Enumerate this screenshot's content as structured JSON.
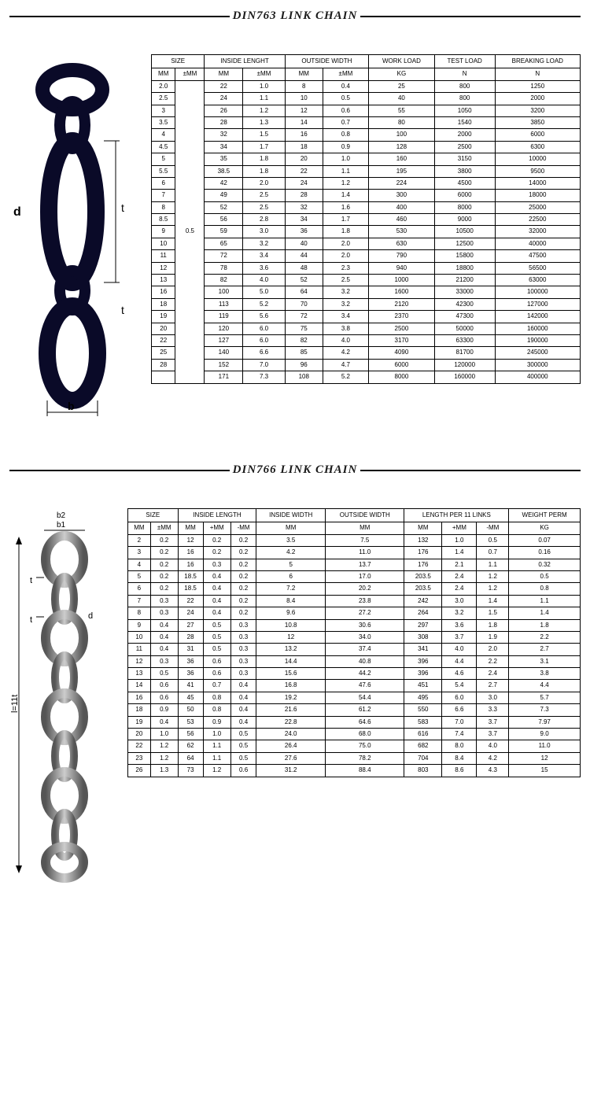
{
  "section1": {
    "title": "DIN763 LINK CHAIN",
    "diagram_labels": {
      "d": "d",
      "t": "t",
      "t2": "t",
      "b": "b"
    },
    "headers": {
      "size": "SIZE",
      "inside_length": "INSIDE LENGHT",
      "outside_width": "OUTSIDE WIDTH",
      "work_load": "WORK LOAD",
      "test_load": "TEST LOAD",
      "breaking_load": "BREAKING LOAD",
      "mm": "MM",
      "pmm": "±MM",
      "kg": "KG",
      "n": "N"
    },
    "tolerance": "0.5",
    "rows": [
      [
        "2.0",
        "22",
        "1.0",
        "8",
        "0.4",
        "25",
        "800",
        "1250"
      ],
      [
        "2.5",
        "24",
        "1.1",
        "10",
        "0.5",
        "40",
        "800",
        "2000"
      ],
      [
        "3",
        "26",
        "1.2",
        "12",
        "0.6",
        "55",
        "1050",
        "3200"
      ],
      [
        "3.5",
        "28",
        "1.3",
        "14",
        "0.7",
        "80",
        "1540",
        "3850"
      ],
      [
        "4",
        "32",
        "1.5",
        "16",
        "0.8",
        "100",
        "2000",
        "6000"
      ],
      [
        "4.5",
        "34",
        "1.7",
        "18",
        "0.9",
        "128",
        "2500",
        "6300"
      ],
      [
        "5",
        "35",
        "1.8",
        "20",
        "1.0",
        "160",
        "3150",
        "10000"
      ],
      [
        "5.5",
        "38.5",
        "1.8",
        "22",
        "1.1",
        "195",
        "3800",
        "9500"
      ],
      [
        "6",
        "42",
        "2.0",
        "24",
        "1.2",
        "224",
        "4500",
        "14000"
      ],
      [
        "7",
        "49",
        "2.5",
        "28",
        "1.4",
        "300",
        "6000",
        "18000"
      ],
      [
        "8",
        "52",
        "2.5",
        "32",
        "1.6",
        "400",
        "8000",
        "25000"
      ],
      [
        "8.5",
        "56",
        "2.8",
        "34",
        "1.7",
        "460",
        "9000",
        "22500"
      ],
      [
        "9",
        "59",
        "3.0",
        "36",
        "1.8",
        "530",
        "10500",
        "32000"
      ],
      [
        "10",
        "65",
        "3.2",
        "40",
        "2.0",
        "630",
        "12500",
        "40000"
      ],
      [
        "11",
        "72",
        "3.4",
        "44",
        "2.0",
        "790",
        "15800",
        "47500"
      ],
      [
        "12",
        "78",
        "3.6",
        "48",
        "2.3",
        "940",
        "18800",
        "56500"
      ],
      [
        "13",
        "82",
        "4.0",
        "52",
        "2.5",
        "1000",
        "21200",
        "63000"
      ],
      [
        "16",
        "100",
        "5.0",
        "64",
        "3.2",
        "1600",
        "33000",
        "100000"
      ],
      [
        "18",
        "113",
        "5.2",
        "70",
        "3.2",
        "2120",
        "42300",
        "127000"
      ],
      [
        "19",
        "119",
        "5.6",
        "72",
        "3.4",
        "2370",
        "47300",
        "142000"
      ],
      [
        "20",
        "120",
        "6.0",
        "75",
        "3.8",
        "2500",
        "50000",
        "160000"
      ],
      [
        "22",
        "127",
        "6.0",
        "82",
        "4.0",
        "3170",
        "63300",
        "190000"
      ],
      [
        "25",
        "140",
        "6.6",
        "85",
        "4.2",
        "4090",
        "81700",
        "245000"
      ],
      [
        "28",
        "152",
        "7.0",
        "96",
        "4.7",
        "6000",
        "120000",
        "300000"
      ],
      [
        "",
        "171",
        "7.3",
        "108",
        "5.2",
        "8000",
        "160000",
        "400000"
      ]
    ]
  },
  "section2": {
    "title": "DIN766 LINK CHAIN",
    "diagram_labels": {
      "b2": "b2",
      "b1": "b1",
      "t": "t",
      "t2": "t",
      "d": "d",
      "l11": "l=11t"
    },
    "headers": {
      "size": "SIZE",
      "inside_length": "INSIDE LENGTH",
      "inside_width": "INSIDE WIDTH",
      "outside_width": "OUTSIDE WIDTH",
      "length_per": "LENGTH PER 11 LINKS",
      "weight_perm": "WEIGHT PERM",
      "mm": "MM",
      "pmm": "±MM",
      "plus_mm": "+MM",
      "minus_mm": "-MM",
      "kg": "KG"
    },
    "rows": [
      [
        "2",
        "0.2",
        "12",
        "0.2",
        "0.2",
        "3.5",
        "7.5",
        "132",
        "1.0",
        "0.5",
        "0.07"
      ],
      [
        "3",
        "0.2",
        "16",
        "0.2",
        "0.2",
        "4.2",
        "11.0",
        "176",
        "1.4",
        "0.7",
        "0.16"
      ],
      [
        "4",
        "0.2",
        "16",
        "0.3",
        "0.2",
        "5",
        "13.7",
        "176",
        "2.1",
        "1.1",
        "0.32"
      ],
      [
        "5",
        "0.2",
        "18.5",
        "0.4",
        "0.2",
        "6",
        "17.0",
        "203.5",
        "2.4",
        "1.2",
        "0.5"
      ],
      [
        "6",
        "0.2",
        "18.5",
        "0.4",
        "0.2",
        "7.2",
        "20.2",
        "203.5",
        "2.4",
        "1.2",
        "0.8"
      ],
      [
        "7",
        "0.3",
        "22",
        "0.4",
        "0.2",
        "8.4",
        "23.8",
        "242",
        "3.0",
        "1.4",
        "1.1"
      ],
      [
        "8",
        "0.3",
        "24",
        "0.4",
        "0.2",
        "9.6",
        "27.2",
        "264",
        "3.2",
        "1.5",
        "1.4"
      ],
      [
        "9",
        "0.4",
        "27",
        "0.5",
        "0.3",
        "10.8",
        "30.6",
        "297",
        "3.6",
        "1.8",
        "1.8"
      ],
      [
        "10",
        "0.4",
        "28",
        "0.5",
        "0.3",
        "12",
        "34.0",
        "308",
        "3.7",
        "1.9",
        "2.2"
      ],
      [
        "11",
        "0.4",
        "31",
        "0.5",
        "0.3",
        "13.2",
        "37.4",
        "341",
        "4.0",
        "2.0",
        "2.7"
      ],
      [
        "12",
        "0.3",
        "36",
        "0.6",
        "0.3",
        "14.4",
        "40.8",
        "396",
        "4.4",
        "2.2",
        "3.1"
      ],
      [
        "13",
        "0.5",
        "36",
        "0.6",
        "0.3",
        "15.6",
        "44.2",
        "396",
        "4.6",
        "2.4",
        "3.8"
      ],
      [
        "14",
        "0.6",
        "41",
        "0.7",
        "0.4",
        "16.8",
        "47.6",
        "451",
        "5.4",
        "2.7",
        "4.4"
      ],
      [
        "16",
        "0.6",
        "45",
        "0.8",
        "0.4",
        "19.2",
        "54.4",
        "495",
        "6.0",
        "3.0",
        "5.7"
      ],
      [
        "18",
        "0.9",
        "50",
        "0.8",
        "0.4",
        "21.6",
        "61.2",
        "550",
        "6.6",
        "3.3",
        "7.3"
      ],
      [
        "19",
        "0.4",
        "53",
        "0.9",
        "0.4",
        "22.8",
        "64.6",
        "583",
        "7.0",
        "3.7",
        "7.97"
      ],
      [
        "20",
        "1.0",
        "56",
        "1.0",
        "0.5",
        "24.0",
        "68.0",
        "616",
        "7.4",
        "3.7",
        "9.0"
      ],
      [
        "22",
        "1.2",
        "62",
        "1.1",
        "0.5",
        "26.4",
        "75.0",
        "682",
        "8.0",
        "4.0",
        "11.0"
      ],
      [
        "23",
        "1.2",
        "64",
        "1.1",
        "0.5",
        "27.6",
        "78.2",
        "704",
        "8.4",
        "4.2",
        "12"
      ],
      [
        "26",
        "1.3",
        "73",
        "1.2",
        "0.6",
        "31.2",
        "88.4",
        "803",
        "8.6",
        "4.3",
        "15"
      ]
    ]
  }
}
